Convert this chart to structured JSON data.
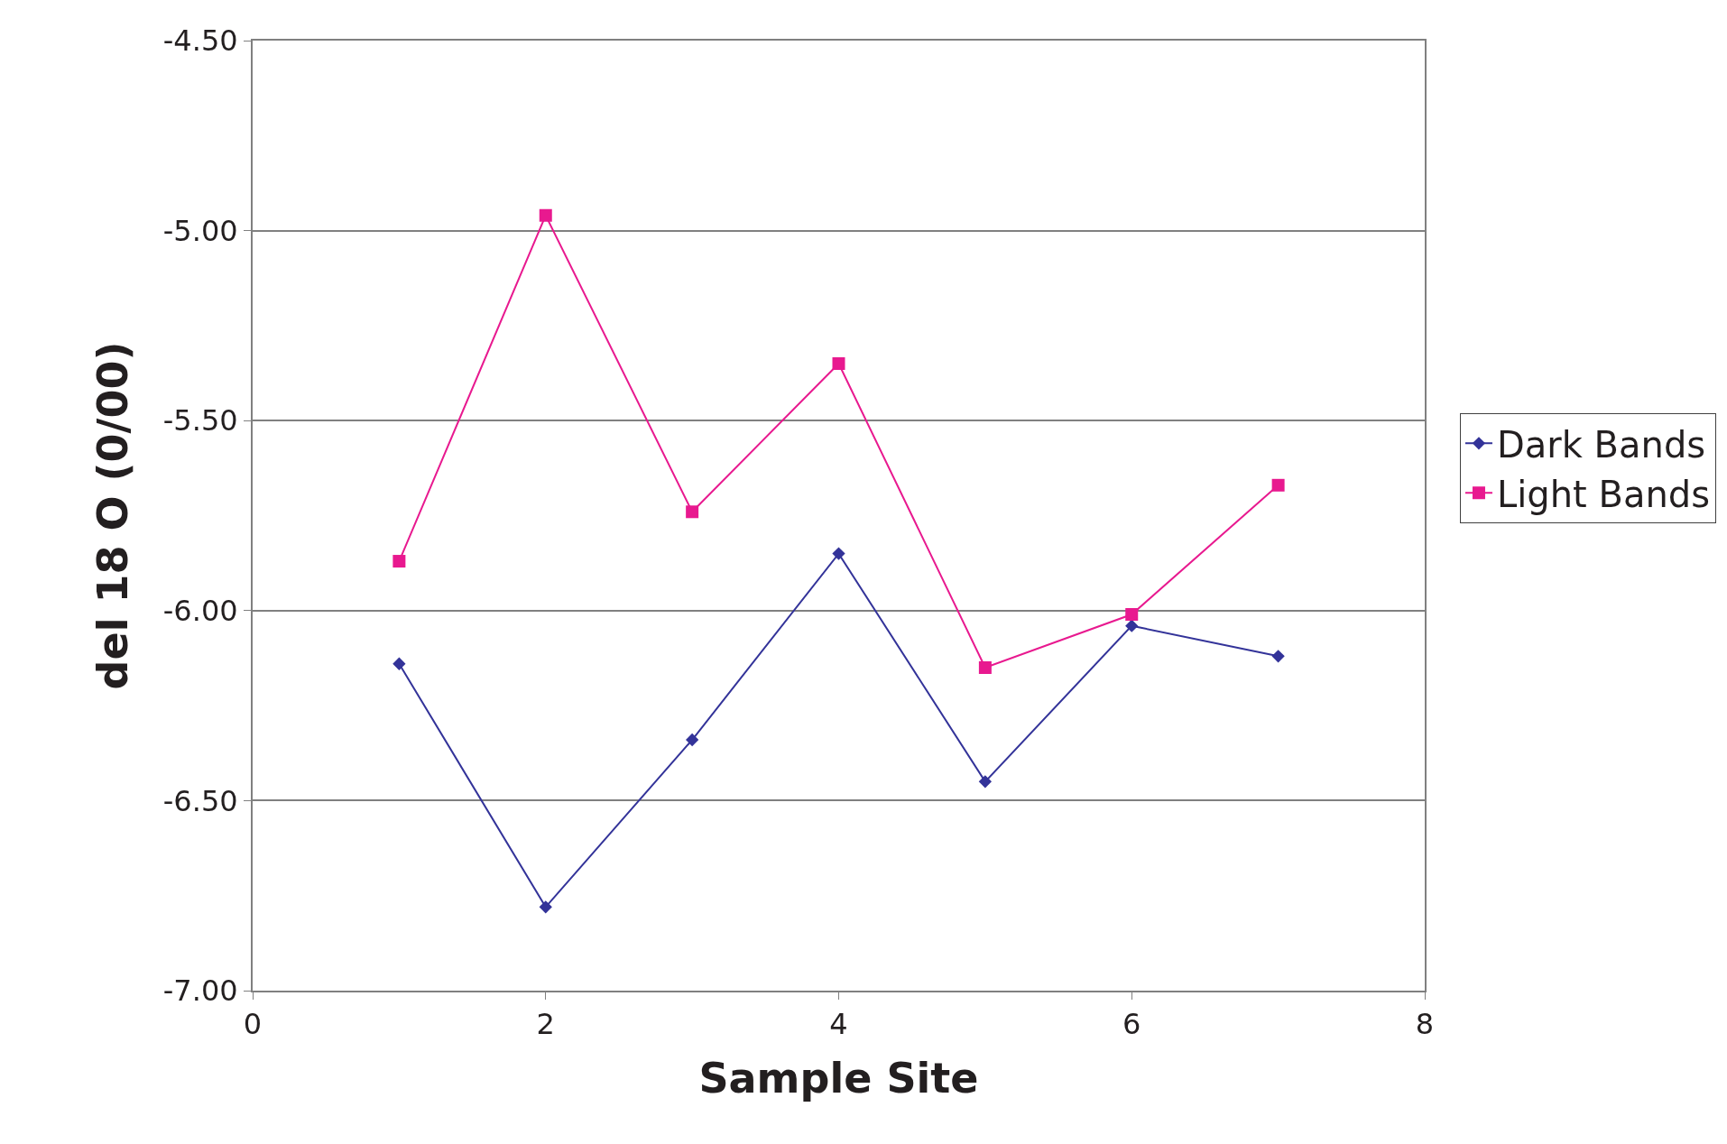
{
  "chart_data": {
    "type": "line",
    "xlabel": "Sample Site",
    "ylabel": "del 18 O (0/00)",
    "x": [
      1,
      2,
      3,
      4,
      5,
      6,
      7
    ],
    "series": [
      {
        "name": "Dark Bands",
        "color": "#333399",
        "marker": "diamond",
        "values": [
          -6.14,
          -6.78,
          -6.34,
          -5.85,
          -6.45,
          -6.04,
          -6.12
        ]
      },
      {
        "name": "Light Bands",
        "color": "#e8198f",
        "marker": "square",
        "values": [
          -5.87,
          -4.96,
          -5.74,
          -5.35,
          -6.15,
          -6.01,
          -5.67
        ]
      }
    ],
    "xlim": [
      0,
      8
    ],
    "xticks": [
      0,
      2,
      4,
      6,
      8
    ],
    "ylim": [
      -7,
      -4.5
    ],
    "yticks": [
      {
        "value": -7,
        "label": "-7.00"
      },
      {
        "value": -6.5,
        "label": "-6.50"
      },
      {
        "value": -6,
        "label": "-6.00"
      },
      {
        "value": -5.5,
        "label": "-5.50"
      },
      {
        "value": -5,
        "label": "-5.00"
      },
      {
        "value": -4.5,
        "label": "-4.50"
      }
    ],
    "grid": "y",
    "legend": "right",
    "line_style": "solid"
  }
}
